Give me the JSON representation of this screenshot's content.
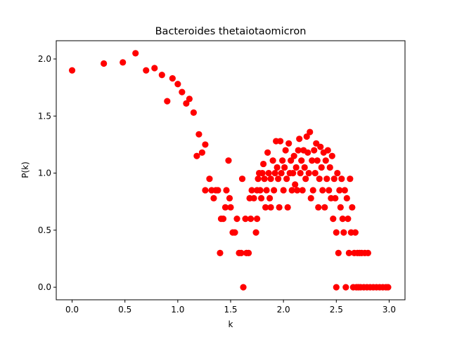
{
  "chart_data": {
    "type": "scatter",
    "title": "Bacteroides thetaiotaomicron",
    "xlabel": "k",
    "ylabel": "P(k)",
    "xlim": [
      -0.15,
      3.15
    ],
    "ylim": [
      -0.11,
      2.16
    ],
    "xticks": [
      0.0,
      0.5,
      1.0,
      1.5,
      2.0,
      2.5,
      3.0
    ],
    "xtick_labels": [
      "0.0",
      "0.5",
      "1.0",
      "1.5",
      "2.0",
      "2.5",
      "3.0"
    ],
    "yticks": [
      0.0,
      0.5,
      1.0,
      1.5,
      2.0
    ],
    "ytick_labels": [
      "0.0",
      "0.5",
      "1.0",
      "1.5",
      "2.0"
    ],
    "grid": false,
    "marker_color": "#ff0000",
    "points": [
      [
        0.0,
        1.9
      ],
      [
        0.3,
        1.96
      ],
      [
        0.48,
        1.97
      ],
      [
        0.6,
        2.05
      ],
      [
        0.7,
        1.9
      ],
      [
        0.78,
        1.92
      ],
      [
        0.85,
        1.86
      ],
      [
        0.9,
        1.63
      ],
      [
        0.95,
        1.83
      ],
      [
        1.0,
        1.78
      ],
      [
        1.04,
        1.71
      ],
      [
        1.08,
        1.61
      ],
      [
        1.11,
        1.65
      ],
      [
        1.15,
        1.53
      ],
      [
        1.18,
        1.15
      ],
      [
        1.2,
        1.34
      ],
      [
        1.23,
        1.18
      ],
      [
        1.26,
        1.25
      ],
      [
        1.26,
        0.85
      ],
      [
        1.3,
        0.95
      ],
      [
        1.32,
        0.85
      ],
      [
        1.34,
        0.78
      ],
      [
        1.36,
        0.85
      ],
      [
        1.38,
        0.85
      ],
      [
        1.4,
        0.3
      ],
      [
        1.41,
        0.6
      ],
      [
        1.43,
        0.6
      ],
      [
        1.45,
        0.7
      ],
      [
        1.46,
        0.85
      ],
      [
        1.48,
        1.11
      ],
      [
        1.49,
        0.78
      ],
      [
        1.5,
        0.7
      ],
      [
        1.52,
        0.48
      ],
      [
        1.54,
        0.48
      ],
      [
        1.56,
        0.6
      ],
      [
        1.58,
        0.3
      ],
      [
        1.6,
        0.3
      ],
      [
        1.61,
        0.95
      ],
      [
        1.62,
        0.0
      ],
      [
        1.64,
        0.6
      ],
      [
        1.65,
        0.3
      ],
      [
        1.67,
        0.3
      ],
      [
        1.68,
        0.78
      ],
      [
        1.69,
        0.6
      ],
      [
        1.7,
        0.85
      ],
      [
        1.72,
        0.78
      ],
      [
        1.74,
        0.48
      ],
      [
        1.75,
        0.6
      ],
      [
        1.75,
        0.85
      ],
      [
        1.76,
        0.95
      ],
      [
        1.77,
        1.0
      ],
      [
        1.78,
        0.85
      ],
      [
        1.79,
        0.78
      ],
      [
        1.8,
        1.0
      ],
      [
        1.81,
        1.08
      ],
      [
        1.82,
        0.95
      ],
      [
        1.83,
        0.7
      ],
      [
        1.84,
        0.85
      ],
      [
        1.85,
        1.18
      ],
      [
        1.86,
        1.0
      ],
      [
        1.87,
        0.78
      ],
      [
        1.88,
        0.95
      ],
      [
        1.88,
        0.7
      ],
      [
        1.9,
        1.11
      ],
      [
        1.91,
        0.85
      ],
      [
        1.92,
        1.0
      ],
      [
        1.93,
        1.28
      ],
      [
        1.94,
        1.05
      ],
      [
        1.95,
        0.95
      ],
      [
        1.96,
        0.7
      ],
      [
        1.97,
        1.28
      ],
      [
        1.98,
        1.0
      ],
      [
        1.99,
        1.11
      ],
      [
        2.0,
        0.85
      ],
      [
        2.01,
        1.05
      ],
      [
        2.02,
        1.2
      ],
      [
        2.03,
        0.95
      ],
      [
        2.04,
        0.7
      ],
      [
        2.05,
        1.26
      ],
      [
        2.06,
        1.0
      ],
      [
        2.07,
        1.11
      ],
      [
        2.08,
        0.85
      ],
      [
        2.09,
        1.0
      ],
      [
        2.1,
        1.15
      ],
      [
        2.11,
        0.9
      ],
      [
        2.12,
        1.05
      ],
      [
        2.13,
        0.85
      ],
      [
        2.14,
        1.2
      ],
      [
        2.15,
        1.3
      ],
      [
        2.16,
        1.0
      ],
      [
        2.17,
        1.11
      ],
      [
        2.18,
        0.85
      ],
      [
        2.19,
        1.2
      ],
      [
        2.2,
        1.05
      ],
      [
        2.21,
        0.95
      ],
      [
        2.22,
        1.32
      ],
      [
        2.23,
        1.18
      ],
      [
        2.24,
        1.0
      ],
      [
        2.25,
        1.36
      ],
      [
        2.26,
        0.78
      ],
      [
        2.27,
        1.11
      ],
      [
        2.28,
        0.85
      ],
      [
        2.29,
        1.2
      ],
      [
        2.3,
        1.0
      ],
      [
        2.31,
        1.26
      ],
      [
        2.32,
        1.11
      ],
      [
        2.33,
        0.7
      ],
      [
        2.34,
        0.95
      ],
      [
        2.35,
        1.23
      ],
      [
        2.36,
        1.05
      ],
      [
        2.37,
        0.85
      ],
      [
        2.38,
        1.18
      ],
      [
        2.39,
        0.7
      ],
      [
        2.4,
        1.11
      ],
      [
        2.41,
        0.95
      ],
      [
        2.42,
        1.2
      ],
      [
        2.43,
        0.85
      ],
      [
        2.44,
        1.05
      ],
      [
        2.45,
        0.78
      ],
      [
        2.46,
        1.15
      ],
      [
        2.47,
        0.6
      ],
      [
        2.48,
        0.95
      ],
      [
        2.49,
        0.78
      ],
      [
        2.5,
        0.0
      ],
      [
        2.5,
        0.48
      ],
      [
        2.51,
        1.0
      ],
      [
        2.52,
        0.3
      ],
      [
        2.53,
        0.85
      ],
      [
        2.54,
        0.7
      ],
      [
        2.55,
        0.95
      ],
      [
        2.56,
        0.6
      ],
      [
        2.57,
        0.48
      ],
      [
        2.58,
        0.85
      ],
      [
        2.59,
        0.0
      ],
      [
        2.6,
        0.78
      ],
      [
        2.61,
        0.6
      ],
      [
        2.62,
        0.3
      ],
      [
        2.63,
        0.95
      ],
      [
        2.64,
        0.48
      ],
      [
        2.65,
        0.7
      ],
      [
        2.66,
        0.0
      ],
      [
        2.67,
        0.3
      ],
      [
        2.68,
        0.48
      ],
      [
        2.69,
        0.0
      ],
      [
        2.7,
        0.3
      ],
      [
        2.71,
        0.0
      ],
      [
        2.72,
        0.3
      ],
      [
        2.73,
        0.0
      ],
      [
        2.74,
        0.3
      ],
      [
        2.76,
        0.0
      ],
      [
        2.77,
        0.3
      ],
      [
        2.79,
        0.0
      ],
      [
        2.8,
        0.3
      ],
      [
        2.82,
        0.0
      ],
      [
        2.85,
        0.0
      ],
      [
        2.88,
        0.0
      ],
      [
        2.91,
        0.0
      ],
      [
        2.94,
        0.0
      ],
      [
        2.97,
        0.0
      ],
      [
        2.99,
        0.0
      ]
    ]
  }
}
